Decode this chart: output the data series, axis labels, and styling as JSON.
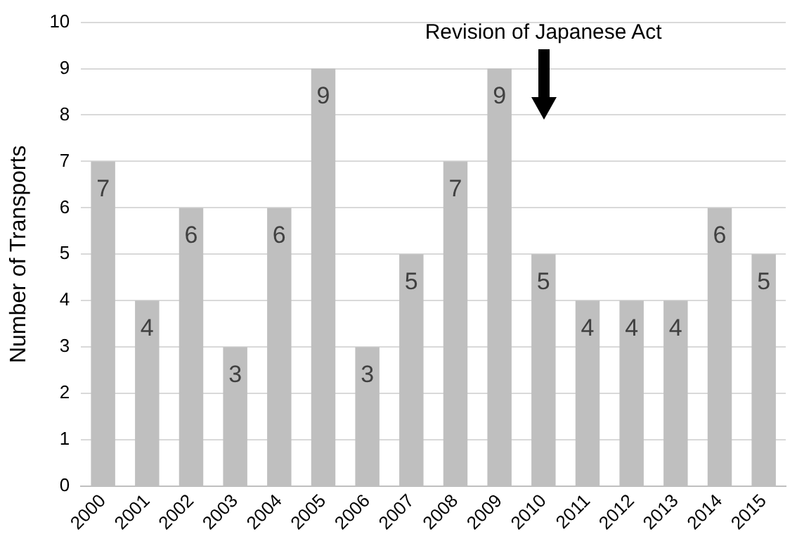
{
  "chart_data": {
    "type": "bar",
    "ylabel": "Number of Transports",
    "categories": [
      "2000",
      "2001",
      "2002",
      "2003",
      "2004",
      "2005",
      "2006",
      "2007",
      "2008",
      "2009",
      "2010",
      "2011",
      "2012",
      "2013",
      "2014",
      "2015"
    ],
    "values": [
      7,
      4,
      6,
      3,
      6,
      9,
      3,
      5,
      7,
      9,
      5,
      4,
      4,
      4,
      6,
      5
    ],
    "color": "#bfbfbf",
    "ylim": [
      0,
      10
    ],
    "yticks": [
      0,
      1,
      2,
      3,
      4,
      5,
      6,
      7,
      8,
      9,
      10
    ],
    "grid": "y",
    "legend": false,
    "data_labels": true,
    "annotations": [
      "Revision of Japanese Act"
    ]
  }
}
